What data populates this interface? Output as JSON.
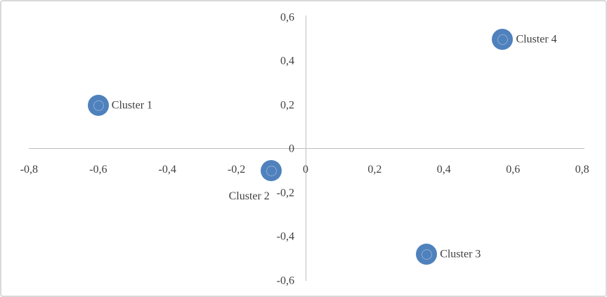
{
  "chart_data": {
    "type": "scatter",
    "title": "",
    "legend": "none",
    "grid": false,
    "decimal_separator": ",",
    "points": [
      {
        "label": "Cluster 1",
        "x": -0.6,
        "y": 0.2,
        "label_side": "right"
      },
      {
        "label": "Cluster 2",
        "x": -0.1,
        "y": -0.1,
        "label_side": "below-left"
      },
      {
        "label": "Cluster 3",
        "x": 0.35,
        "y": -0.48,
        "label_side": "right"
      },
      {
        "label": "Cluster 4",
        "x": 0.57,
        "y": 0.5,
        "label_side": "right"
      }
    ],
    "x_axis": {
      "min": -0.8,
      "max": 0.8,
      "tick_step": 0.2,
      "tick_values": [
        -0.8,
        -0.6,
        -0.4,
        -0.2,
        0,
        0.2,
        0.4,
        0.6,
        0.8
      ],
      "tick_labels": [
        "-0,8",
        "-0,6",
        "-0,4",
        "-0,2",
        "0",
        "0,2",
        "0,4",
        "0,6",
        "0,8"
      ]
    },
    "y_axis": {
      "min": -0.6,
      "max": 0.6,
      "tick_step": 0.2,
      "tick_values": [
        0.6,
        0.4,
        0.2,
        0,
        -0.2,
        -0.4,
        -0.6
      ],
      "tick_labels": [
        "0,6",
        "0,4",
        "0,2",
        "0",
        "-0,2",
        "-0,4",
        "-0,6"
      ]
    },
    "colors": {
      "marker": "#4f81bd",
      "axis_line": "#bfbfbf",
      "tick_text": "#404040",
      "label_text": "#3f3f3f",
      "frame_border": "#d9d9d9"
    }
  }
}
